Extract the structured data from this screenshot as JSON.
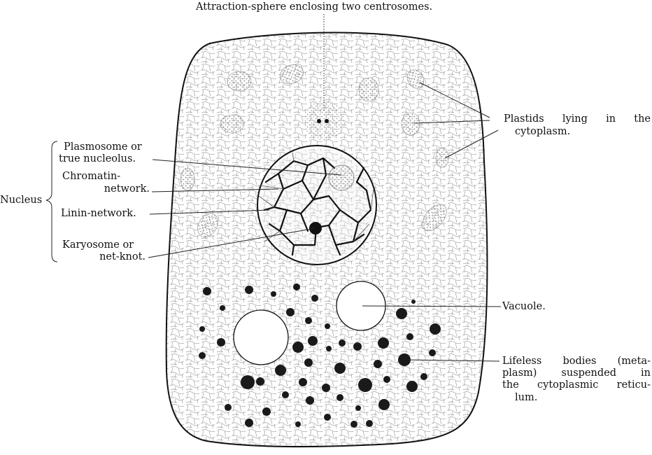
{
  "labels": {
    "attraction_sphere": "Attraction-sphere enclosing two centrosomes.",
    "plastids_line1": "Plastids lying in the",
    "plastids_line2": "cytoplasm.",
    "plasmosome_line1": "Plasmosome or",
    "plasmosome_line2": "true nucleolus.",
    "chromatin_line1": "Chromatin-",
    "chromatin_line2": "network.",
    "nucleus": "Nucleus",
    "linin": "Linin-network.",
    "karyosome_line1": "Karyosome or",
    "karyosome_line2": "net-knot.",
    "vacuole": "Vacuole.",
    "lifeless_line1": "Lifeless bodies (meta-",
    "lifeless_line2": "plasm) suspended in",
    "lifeless_line3": "the cytoplasmic reticu-",
    "lifeless_line4": "lum."
  },
  "colors": {
    "ink": "#111111",
    "reticulum": "#9a9a9a",
    "plastid": "#a9a9a9",
    "granule": "#1a1a1a"
  }
}
